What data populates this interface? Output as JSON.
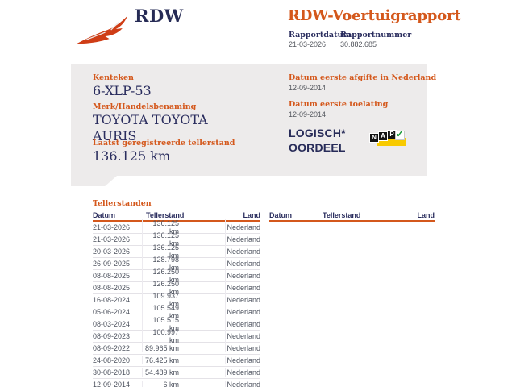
{
  "header": {
    "logo_text": "RDW",
    "title": "RDW-Voertuigrapport",
    "report_date_label": "Rapportdatum",
    "report_date_value": "21-03-2026",
    "report_number_label": "Rapportnummer",
    "report_number_value": "30.882.685"
  },
  "summary": {
    "license_plate_label": "Kenteken",
    "license_plate_value": "6-XLP-53",
    "brand_label": "Merk/Handelsbenaming",
    "brand_value": "TOYOTA TOYOTA AURIS",
    "last_odometer_label": "Laatst geregistreerde tellerstand",
    "last_odometer_value": "136.125 km",
    "first_issue_label": "Datum eerste afgifte in Nederland",
    "first_issue_value": "12-09-2014",
    "first_admission_label": "Datum eerste toelating",
    "first_admission_value": "12-09-2014",
    "verdict_line1": "LOGISCH*",
    "verdict_line2": "OORDEEL",
    "nap_letters": [
      "N",
      "A",
      "P"
    ],
    "nap_check_glyph": "✓"
  },
  "odometer_section": {
    "title": "Tellerstanden",
    "left_table": {
      "columns": [
        "Datum",
        "Tellerstand",
        "Land"
      ],
      "rows": [
        [
          "21-03-2026",
          "136.125 km",
          "Nederland"
        ],
        [
          "21-03-2026",
          "136.125 km",
          "Nederland"
        ],
        [
          "20-03-2026",
          "136.125 km",
          "Nederland"
        ],
        [
          "26-09-2025",
          "128.798 km",
          "Nederland"
        ],
        [
          "08-08-2025",
          "126.250 km",
          "Nederland"
        ],
        [
          "08-08-2025",
          "126.250 km",
          "Nederland"
        ],
        [
          "16-08-2024",
          "109.937 km",
          "Nederland"
        ],
        [
          "05-06-2024",
          "105.549 km",
          "Nederland"
        ],
        [
          "08-03-2024",
          "105.515 km",
          "Nederland"
        ],
        [
          "08-09-2023",
          "100.997 km",
          "Nederland"
        ],
        [
          "08-09-2022",
          "89.965 km",
          "Nederland"
        ],
        [
          "24-08-2020",
          "76.425 km",
          "Nederland"
        ],
        [
          "30-08-2018",
          "54.489 km",
          "Nederland"
        ],
        [
          "12-09-2014",
          "6 km",
          "Nederland"
        ]
      ]
    },
    "right_table": {
      "columns": [
        "Datum",
        "Tellerstand",
        "Land"
      ],
      "rows": []
    }
  },
  "colors": {
    "accent_orange": "#d4581c",
    "logo_red": "#cf3d16",
    "navy": "#2a2d5e",
    "panel_gray": "#edebeb",
    "body_text": "#4d525e",
    "nap_yellow": "#f8ca00",
    "nap_green": "#1d9a3c"
  }
}
